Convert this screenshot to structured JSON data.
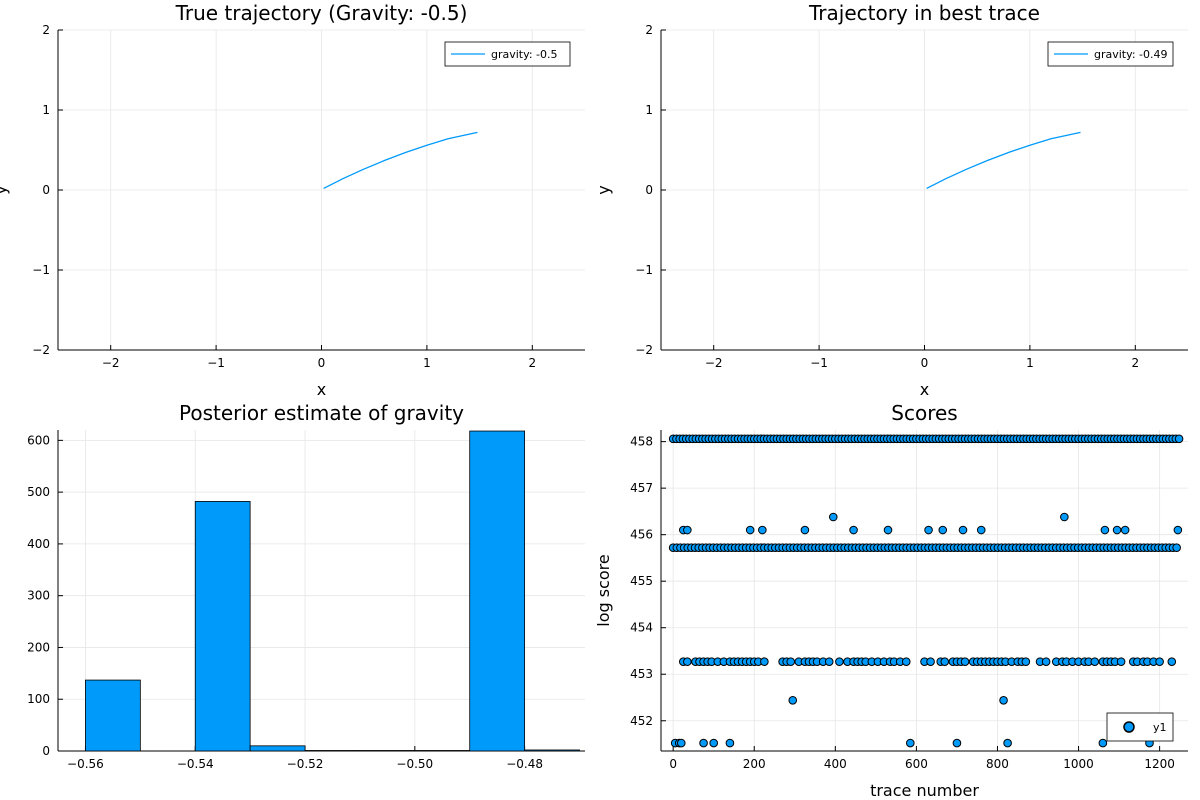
{
  "chart_data": [
    {
      "type": "line",
      "title": "True trajectory (Gravity: -0.5)",
      "xlabel": "x",
      "ylabel": "y",
      "xlim": [
        -2.5,
        2.5
      ],
      "ylim": [
        -2,
        2
      ],
      "xticks": [
        -2,
        -1,
        0,
        1,
        2
      ],
      "yticks": [
        -2,
        -1,
        0,
        1,
        2
      ],
      "tick_labels_x": [
        "−2",
        "−1",
        "0",
        "1",
        "2"
      ],
      "tick_labels_y": [
        "−2",
        "−1",
        "0",
        "1",
        "2"
      ],
      "grid": true,
      "legend_position": "top-right",
      "series": [
        {
          "name": "gravity: -0.5",
          "color": "#009AFA",
          "x": [
            0.02,
            0.2,
            0.4,
            0.6,
            0.8,
            1.0,
            1.2,
            1.48
          ],
          "y": [
            0.02,
            0.14,
            0.26,
            0.37,
            0.47,
            0.56,
            0.64,
            0.72
          ]
        }
      ]
    },
    {
      "type": "line",
      "title": "Trajectory in best trace",
      "xlabel": "x",
      "ylabel": "y",
      "xlim": [
        -2.5,
        2.5
      ],
      "ylim": [
        -2,
        2
      ],
      "xticks": [
        -2,
        -1,
        0,
        1,
        2
      ],
      "yticks": [
        -2,
        -1,
        0,
        1,
        2
      ],
      "tick_labels_x": [
        "−2",
        "−1",
        "0",
        "1",
        "2"
      ],
      "tick_labels_y": [
        "−2",
        "−1",
        "0",
        "1",
        "2"
      ],
      "grid": true,
      "legend_position": "top-right",
      "series": [
        {
          "name": "gravity: -0.49",
          "color": "#009AFA",
          "x": [
            0.02,
            0.2,
            0.4,
            0.6,
            0.8,
            1.0,
            1.2,
            1.48
          ],
          "y": [
            0.02,
            0.14,
            0.26,
            0.37,
            0.47,
            0.56,
            0.64,
            0.72
          ]
        }
      ]
    },
    {
      "type": "bar",
      "title": "Posterior estimate of gravity",
      "xlabel": "",
      "ylabel": "",
      "xlim": [
        -0.565,
        -0.469
      ],
      "ylim": [
        0,
        620
      ],
      "xticks": [
        -0.56,
        -0.54,
        -0.52,
        -0.5,
        -0.48
      ],
      "yticks": [
        0,
        100,
        200,
        300,
        400,
        500,
        600
      ],
      "tick_labels_x": [
        "−0.56",
        "−0.54",
        "−0.52",
        "−0.50",
        "−0.48"
      ],
      "tick_labels_y": [
        "0",
        "100",
        "200",
        "300",
        "400",
        "500",
        "600"
      ],
      "grid": true,
      "color": "#009AFA",
      "bins": [
        {
          "x0": -0.56,
          "x1": -0.55,
          "value": 137
        },
        {
          "x0": -0.55,
          "x1": -0.54,
          "value": 0
        },
        {
          "x0": -0.54,
          "x1": -0.53,
          "value": 482
        },
        {
          "x0": -0.53,
          "x1": -0.52,
          "value": 10
        },
        {
          "x0": -0.52,
          "x1": -0.51,
          "value": 1
        },
        {
          "x0": -0.51,
          "x1": -0.5,
          "value": 1
        },
        {
          "x0": -0.5,
          "x1": -0.49,
          "value": 1
        },
        {
          "x0": -0.49,
          "x1": -0.48,
          "value": 618
        },
        {
          "x0": -0.48,
          "x1": -0.47,
          "value": 2
        }
      ]
    },
    {
      "type": "scatter",
      "title": "Scores",
      "xlabel": "trace number",
      "ylabel": "log score",
      "xlim": [
        -30,
        1270
      ],
      "ylim": [
        451.35,
        458.25
      ],
      "xticks": [
        0,
        200,
        400,
        600,
        800,
        1000,
        1200
      ],
      "yticks": [
        452,
        453,
        454,
        455,
        456,
        457,
        458
      ],
      "tick_labels_x": [
        "0",
        "200",
        "400",
        "600",
        "800",
        "1000",
        "1200"
      ],
      "tick_labels_y": [
        "452",
        "453",
        "454",
        "455",
        "456",
        "457",
        "458"
      ],
      "grid": true,
      "legend_position": "bottom-right",
      "series": [
        {
          "name": "y1",
          "color": "#009AFA",
          "bands": [
            {
              "y": 458.06,
              "x_from": 0,
              "x_to": 1250,
              "step": 8
            },
            {
              "y": 455.72,
              "x_from": 0,
              "x_to": 1250,
              "step": 9
            }
          ],
          "points": [
            [
              25,
              456.1
            ],
            [
              35,
              456.1
            ],
            [
              190,
              456.1
            ],
            [
              220,
              456.1
            ],
            [
              325,
              456.1
            ],
            [
              395,
              456.38
            ],
            [
              445,
              456.1
            ],
            [
              530,
              456.1
            ],
            [
              630,
              456.1
            ],
            [
              665,
              456.1
            ],
            [
              715,
              456.1
            ],
            [
              760,
              456.1
            ],
            [
              965,
              456.38
            ],
            [
              1065,
              456.1
            ],
            [
              1095,
              456.1
            ],
            [
              1115,
              456.1
            ],
            [
              1245,
              456.1
            ],
            [
              25,
              453.27
            ],
            [
              35,
              453.27
            ],
            [
              55,
              453.27
            ],
            [
              65,
              453.27
            ],
            [
              75,
              453.27
            ],
            [
              85,
              453.27
            ],
            [
              95,
              453.27
            ],
            [
              110,
              453.27
            ],
            [
              125,
              453.27
            ],
            [
              140,
              453.27
            ],
            [
              150,
              453.27
            ],
            [
              160,
              453.27
            ],
            [
              170,
              453.27
            ],
            [
              180,
              453.27
            ],
            [
              190,
              453.27
            ],
            [
              200,
              453.27
            ],
            [
              210,
              453.27
            ],
            [
              225,
              453.27
            ],
            [
              270,
              453.27
            ],
            [
              280,
              453.27
            ],
            [
              290,
              453.27
            ],
            [
              310,
              453.27
            ],
            [
              325,
              453.27
            ],
            [
              335,
              453.27
            ],
            [
              345,
              453.27
            ],
            [
              355,
              453.27
            ],
            [
              370,
              453.27
            ],
            [
              385,
              453.27
            ],
            [
              410,
              453.27
            ],
            [
              430,
              453.27
            ],
            [
              445,
              453.27
            ],
            [
              455,
              453.27
            ],
            [
              465,
              453.27
            ],
            [
              475,
              453.27
            ],
            [
              490,
              453.27
            ],
            [
              505,
              453.27
            ],
            [
              520,
              453.27
            ],
            [
              535,
              453.27
            ],
            [
              545,
              453.27
            ],
            [
              560,
              453.27
            ],
            [
              575,
              453.27
            ],
            [
              620,
              453.27
            ],
            [
              635,
              453.27
            ],
            [
              660,
              453.27
            ],
            [
              670,
              453.27
            ],
            [
              690,
              453.27
            ],
            [
              700,
              453.27
            ],
            [
              710,
              453.27
            ],
            [
              720,
              453.27
            ],
            [
              740,
              453.27
            ],
            [
              750,
              453.27
            ],
            [
              760,
              453.27
            ],
            [
              770,
              453.27
            ],
            [
              780,
              453.27
            ],
            [
              790,
              453.27
            ],
            [
              800,
              453.27
            ],
            [
              810,
              453.27
            ],
            [
              820,
              453.27
            ],
            [
              835,
              453.27
            ],
            [
              850,
              453.27
            ],
            [
              860,
              453.27
            ],
            [
              870,
              453.27
            ],
            [
              905,
              453.27
            ],
            [
              920,
              453.27
            ],
            [
              945,
              453.27
            ],
            [
              960,
              453.27
            ],
            [
              970,
              453.27
            ],
            [
              985,
              453.27
            ],
            [
              1000,
              453.27
            ],
            [
              1015,
              453.27
            ],
            [
              1025,
              453.27
            ],
            [
              1040,
              453.27
            ],
            [
              1060,
              453.27
            ],
            [
              1070,
              453.27
            ],
            [
              1080,
              453.27
            ],
            [
              1090,
              453.27
            ],
            [
              1105,
              453.27
            ],
            [
              1135,
              453.27
            ],
            [
              1145,
              453.27
            ],
            [
              1160,
              453.27
            ],
            [
              1170,
              453.27
            ],
            [
              1185,
              453.27
            ],
            [
              1200,
              453.27
            ],
            [
              1230,
              453.27
            ],
            [
              295,
              452.44
            ],
            [
              815,
              452.44
            ],
            [
              5,
              451.52
            ],
            [
              15,
              451.52
            ],
            [
              20,
              451.52
            ],
            [
              75,
              451.52
            ],
            [
              100,
              451.52
            ],
            [
              140,
              451.52
            ],
            [
              585,
              451.52
            ],
            [
              700,
              451.52
            ],
            [
              825,
              451.52
            ],
            [
              1060,
              451.52
            ],
            [
              1175,
              451.52
            ]
          ]
        }
      ]
    }
  ]
}
